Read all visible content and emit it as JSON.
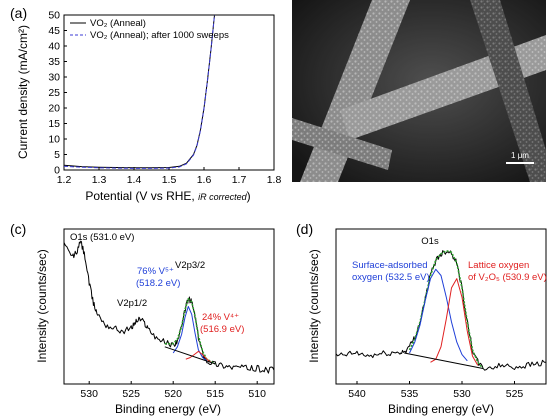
{
  "panels": {
    "a": {
      "label": "(a)",
      "xlabel": "Potential (V vs RHE,",
      "xlabel_note": "iR corrected",
      "xlabel_close": ")",
      "ylabel": "Current density (mA/cm²)",
      "legend": [
        "VO₂ (Anneal)",
        "VO₂ (Anneal); after 1000 sweeps"
      ]
    },
    "b": {
      "label": "(b)",
      "scalebar": "1 μm"
    },
    "c": {
      "label": "(c)",
      "xlabel": "Binding energy (eV)",
      "ylabel": "Intensity (counts/sec)",
      "annotations": {
        "o1s": "O1s (531.0 eV)",
        "v2p12": "V2p1/2",
        "v2p32": "V2p3/2",
        "v5_pct": "76% V⁵⁺",
        "v5_be": "(518.2 eV)",
        "v4_pct": "24% V⁴⁺",
        "v4_be": "(516.9 eV)"
      }
    },
    "d": {
      "label": "(d)",
      "xlabel": "Binding energy (eV)",
      "ylabel": "Intensity (counts/sec)",
      "annotations": {
        "title": "O1s",
        "surface_1": "Surface-adsorbed",
        "surface_2": "oxygen (532.5 eV)",
        "lattice_1": "Lattice oxygen",
        "lattice_2": "of V₂O₅ (530.9 eV)"
      }
    }
  },
  "chart_data": [
    {
      "type": "line",
      "panel": "a",
      "xlim": [
        1.2,
        1.8
      ],
      "ylim": [
        0,
        50
      ],
      "xticks": [
        "1.2",
        "1.3",
        "1.4",
        "1.5",
        "1.6",
        "1.7",
        "1.8"
      ],
      "yticks": [
        "0",
        "5",
        "10",
        "15",
        "20",
        "25",
        "30",
        "35",
        "40",
        "45",
        "50"
      ],
      "series": [
        {
          "name": "VO₂ (Anneal)",
          "color": "#000000",
          "style": "solid",
          "x": [
            1.2,
            1.25,
            1.3,
            1.35,
            1.4,
            1.45,
            1.5,
            1.53,
            1.55,
            1.57,
            1.58,
            1.59,
            1.6,
            1.61,
            1.62,
            1.63
          ],
          "y": [
            1.5,
            1.1,
            0.9,
            0.8,
            0.7,
            0.7,
            0.8,
            1.2,
            2.2,
            5,
            8,
            13,
            20,
            29,
            39,
            50
          ]
        },
        {
          "name": "VO₂ (Anneal); after 1000 sweeps",
          "color": "#3b3bd6",
          "style": "dashed",
          "x": [
            1.2,
            1.25,
            1.3,
            1.35,
            1.4,
            1.45,
            1.5,
            1.53,
            1.55,
            1.57,
            1.58,
            1.59,
            1.6,
            1.61,
            1.62,
            1.63
          ],
          "y": [
            1.2,
            0.9,
            0.7,
            0.6,
            0.5,
            0.5,
            0.6,
            1.0,
            2.0,
            4.8,
            7.8,
            12.8,
            19.8,
            28.8,
            38.8,
            50
          ]
        }
      ]
    },
    {
      "type": "line",
      "panel": "c",
      "xlim": [
        533,
        508
      ],
      "ylim": [
        0,
        100
      ],
      "xticks": [
        "530",
        "525",
        "520",
        "515",
        "510"
      ],
      "series": [
        {
          "name": "",
          "color": "#000000",
          "style": "noisy",
          "x": [
            533,
            532,
            531.5,
            531,
            530.5,
            530,
            529.5,
            529,
            528,
            527,
            526,
            525,
            524.5,
            524,
            523.5,
            523,
            522,
            521,
            520,
            519.5,
            519,
            518.6,
            518.2,
            517.8,
            517.4,
            517,
            516.5,
            516,
            515,
            514,
            513,
            512,
            511,
            510,
            509,
            508
          ],
          "y": [
            90,
            82,
            85,
            92,
            82,
            65,
            52,
            45,
            38,
            36,
            34,
            36,
            40,
            42,
            40,
            36,
            30,
            27,
            25,
            28,
            36,
            48,
            55,
            53,
            44,
            30,
            20,
            15,
            13,
            12,
            11,
            11,
            10,
            10,
            9,
            9
          ]
        },
        {
          "name": "",
          "color": "#2ca02c",
          "style": "fit",
          "x": [
            521,
            520,
            519.5,
            519,
            518.6,
            518.2,
            517.8,
            517.4,
            517,
            516.5,
            516,
            515
          ],
          "y": [
            26,
            26,
            29,
            37,
            48,
            55,
            53,
            44,
            31,
            21,
            16,
            13
          ]
        },
        {
          "name": "",
          "color": "#1f3fd8",
          "style": "component",
          "x": [
            520,
            519.5,
            519,
            518.6,
            518.2,
            517.8,
            517.4,
            517,
            516.5,
            516
          ],
          "y": [
            20,
            24,
            32,
            43,
            50,
            45,
            33,
            22,
            17,
            15
          ]
        },
        {
          "name": "",
          "color": "#e02020",
          "style": "component",
          "x": [
            518.5,
            518,
            517.5,
            517,
            516.5,
            516,
            515.5
          ],
          "y": [
            16,
            17,
            19,
            21,
            19,
            16,
            14
          ]
        },
        {
          "name": "",
          "color": "#000000",
          "style": "baseline",
          "x": [
            521,
            515
          ],
          "y": [
            24,
            13
          ]
        }
      ]
    },
    {
      "type": "line",
      "panel": "d",
      "xlim": [
        542,
        522
      ],
      "ylim": [
        0,
        100
      ],
      "xticks": [
        "540",
        "535",
        "530",
        "525"
      ],
      "series": [
        {
          "name": "",
          "color": "#000000",
          "style": "noisy",
          "x": [
            542,
            541,
            540,
            539,
            538,
            537,
            536,
            535.5,
            535,
            534.5,
            534,
            533.5,
            533,
            532.5,
            532,
            531.5,
            531,
            530.5,
            530,
            529.5,
            529,
            528.5,
            528,
            527,
            526,
            525,
            524,
            523,
            522
          ],
          "y": [
            18,
            19,
            20,
            18,
            19,
            20,
            20,
            21,
            24,
            30,
            40,
            55,
            70,
            80,
            84,
            86,
            85,
            78,
            62,
            40,
            22,
            14,
            10,
            11,
            12,
            11,
            12,
            13,
            14
          ]
        },
        {
          "name": "",
          "color": "#2ca02c",
          "style": "fit",
          "x": [
            535,
            534.5,
            534,
            533.5,
            533,
            532.5,
            532,
            531.5,
            531,
            530.5,
            530,
            529.5,
            529,
            528.5,
            528
          ],
          "y": [
            22,
            29,
            40,
            55,
            70,
            80,
            84,
            86,
            85,
            78,
            62,
            40,
            22,
            14,
            10
          ]
        },
        {
          "name": "",
          "color": "#1f3fd8",
          "style": "component",
          "x": [
            535,
            534.5,
            534,
            533.5,
            533,
            532.5,
            532,
            531.5,
            531,
            530.5,
            530,
            529.5
          ],
          "y": [
            20,
            27,
            38,
            54,
            68,
            74,
            70,
            56,
            40,
            27,
            19,
            15
          ]
        },
        {
          "name": "",
          "color": "#e02020",
          "style": "component",
          "x": [
            533,
            532.5,
            532,
            531.5,
            531,
            530.5,
            530,
            529.5,
            529,
            528.5
          ],
          "y": [
            14,
            16,
            24,
            42,
            62,
            68,
            56,
            34,
            18,
            12
          ]
        },
        {
          "name": "",
          "color": "#000000",
          "style": "baseline",
          "x": [
            535.5,
            528
          ],
          "y": [
            20,
            10
          ]
        }
      ]
    }
  ]
}
